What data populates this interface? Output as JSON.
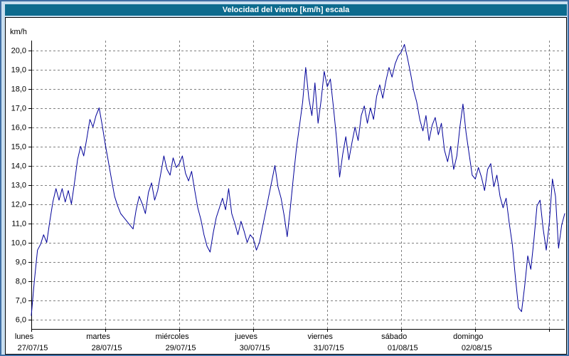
{
  "window": {
    "title": "Velocidad del viento [km/h] escala"
  },
  "colors": {
    "frame_background": "#c9dff0",
    "frame_border": "#3f6fa5",
    "titlebar_background": "#0d6b8e",
    "titlebar_text": "#ffffff",
    "panel_background": "#ffffff",
    "panel_border": "#000000",
    "grid_color": "#808080",
    "axis_color": "#000000",
    "label_color": "#000000",
    "line_color": "#000099"
  },
  "chart_data": {
    "type": "line",
    "title": "Velocidad del viento [km/h] escala",
    "xlabel": "",
    "ylabel": "km/h",
    "ylim": [
      5.5,
      20.5
    ],
    "y_ticks": [
      6,
      7,
      8,
      9,
      10,
      11,
      12,
      13,
      14,
      15,
      16,
      17,
      18,
      19,
      20
    ],
    "y_tick_labels": [
      "6,0",
      "7,0",
      "8,0",
      "9,0",
      "10,0",
      "11,0",
      "12,0",
      "13,0",
      "14,0",
      "15,0",
      "16,0",
      "17,0",
      "18,0",
      "19,0",
      "20,0"
    ],
    "grid": "dashed",
    "legend": "none",
    "sample_interval_hours": 1,
    "x_days": [
      {
        "name": "lunes",
        "date": "27/07/15"
      },
      {
        "name": "martes",
        "date": "28/07/15"
      },
      {
        "name": "miércoles",
        "date": "29/07/15"
      },
      {
        "name": "jueves",
        "date": "30/07/15"
      },
      {
        "name": "viernes",
        "date": "31/07/15"
      },
      {
        "name": "sábado",
        "date": "01/08/15"
      },
      {
        "name": "domingo",
        "date": "02/08/15"
      }
    ],
    "series": [
      {
        "name": "Velocidad del viento",
        "unit": "km/h",
        "values": [
          6.2,
          8.0,
          9.6,
          9.9,
          10.4,
          10.0,
          11.1,
          12.1,
          12.8,
          12.2,
          12.8,
          12.1,
          12.7,
          12.0,
          13.1,
          14.3,
          15.0,
          14.5,
          15.4,
          16.4,
          16.0,
          16.6,
          17.0,
          16.1,
          15.1,
          14.2,
          13.3,
          12.4,
          11.9,
          11.5,
          11.3,
          11.1,
          10.9,
          10.7,
          11.7,
          12.4,
          12.0,
          11.5,
          12.6,
          13.1,
          12.2,
          12.7,
          13.6,
          14.5,
          13.8,
          13.5,
          14.4,
          13.9,
          14.1,
          14.5,
          13.6,
          13.2,
          13.7,
          12.7,
          11.8,
          11.2,
          10.4,
          9.8,
          9.5,
          10.5,
          11.3,
          11.8,
          12.3,
          11.7,
          12.8,
          11.5,
          11.0,
          10.4,
          11.1,
          10.6,
          10.0,
          10.4,
          10.2,
          9.6,
          10.0,
          10.8,
          11.6,
          12.4,
          13.2,
          14.0,
          12.9,
          12.3,
          11.4,
          10.3,
          11.8,
          13.4,
          14.9,
          16.1,
          17.3,
          19.1,
          17.5,
          16.6,
          18.3,
          16.2,
          17.4,
          18.9,
          18.1,
          18.5,
          17.0,
          15.4,
          13.4,
          14.6,
          15.5,
          14.3,
          15.2,
          16.0,
          15.3,
          16.6,
          17.1,
          16.2,
          17.0,
          16.4,
          17.6,
          18.2,
          17.5,
          18.4,
          19.1,
          18.6,
          19.3,
          19.7,
          19.9,
          20.3,
          19.6,
          18.8,
          17.9,
          17.3,
          16.4,
          15.8,
          16.6,
          15.3,
          16.1,
          16.5,
          15.6,
          16.2,
          14.8,
          14.2,
          15.0,
          13.8,
          14.5,
          16.0,
          17.2,
          15.7,
          14.6,
          13.5,
          13.3,
          13.9,
          13.4,
          12.7,
          13.8,
          14.1,
          12.9,
          13.5,
          12.4,
          11.8,
          12.3,
          11.0,
          9.9,
          8.2,
          6.6,
          6.4,
          7.7,
          9.3,
          8.6,
          10.1,
          11.9,
          12.2,
          10.7,
          9.6,
          11.0,
          13.3,
          12.4,
          9.7,
          10.9,
          11.5
        ]
      }
    ]
  }
}
